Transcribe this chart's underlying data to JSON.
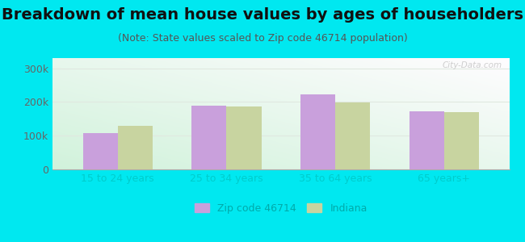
{
  "title": "Breakdown of mean house values by ages of householders",
  "subtitle": "(Note: State values scaled to Zip code 46714 population)",
  "categories": [
    "15 to 24 years",
    "25 to 34 years",
    "35 to 64 years",
    "65 years+"
  ],
  "zip_values": [
    107000,
    188000,
    222000,
    172000
  ],
  "indiana_values": [
    128000,
    186000,
    198000,
    170000
  ],
  "zip_color": "#c9a0dc",
  "indiana_color": "#c8d4a0",
  "background_color": "#00e8f0",
  "ylim": [
    0,
    330000
  ],
  "yticks": [
    0,
    100000,
    200000,
    300000
  ],
  "ytick_labels": [
    "0",
    "100k",
    "200k",
    "300k"
  ],
  "bar_width": 0.32,
  "legend_zip": "Zip code 46714",
  "legend_indiana": "Indiana",
  "watermark": "City-Data.com",
  "title_fontsize": 14,
  "subtitle_fontsize": 9,
  "tick_fontsize": 9,
  "legend_fontsize": 9,
  "xtick_color": "#00cccc",
  "ytick_color": "#666666",
  "grid_color": "#e0e8e0",
  "bottom_spine_color": "#aaaaaa"
}
